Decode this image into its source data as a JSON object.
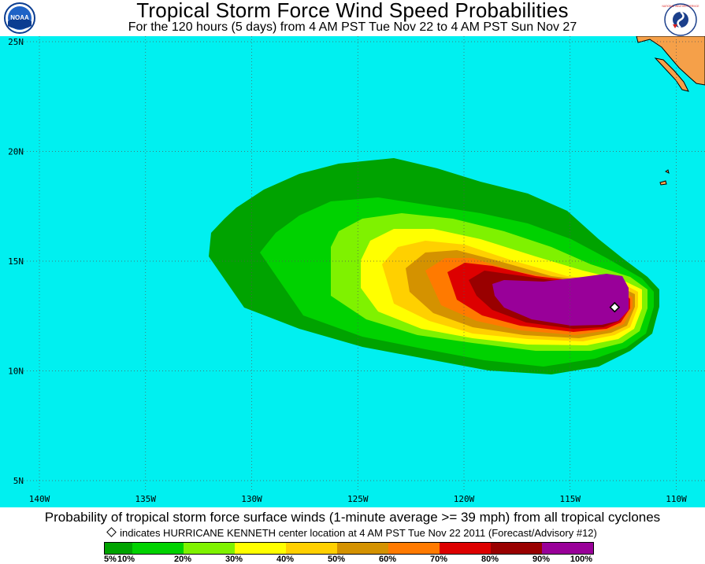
{
  "header": {
    "title": "Tropical Storm Force Wind Speed Probabilities",
    "subtitle": "For the 120 hours (5 days) from 4 AM PST Tue Nov 22 to 4 AM PST Sun Nov 27",
    "left_logo_text": "NOAA",
    "right_logo_text": "NATIONAL WEATHER SERVICE"
  },
  "map": {
    "ocean_color": "#00F0F0",
    "land_color": "#F5A049",
    "lat_labels": [
      "25N",
      "20N",
      "15N",
      "10N",
      "5N"
    ],
    "lon_labels": [
      "140W",
      "135W",
      "130W",
      "125W",
      "120W",
      "115W",
      "110W"
    ],
    "storm_center": {
      "lon": -112.9,
      "lat": 12.9
    }
  },
  "footer": {
    "caption": "Probability of tropical storm force surface winds (1-minute average >= 39 mph) from all tropical cyclones",
    "note": "indicates HURRICANE KENNETH center location at 4 AM PST Tue Nov 22 2011 (Forecast/Advisory #12)"
  },
  "legend": {
    "bins": [
      {
        "from": 5,
        "to": 10,
        "color": "#00A300"
      },
      {
        "from": 10,
        "to": 20,
        "color": "#00D200"
      },
      {
        "from": 20,
        "to": 30,
        "color": "#7FF200"
      },
      {
        "from": 30,
        "to": 40,
        "color": "#FFFF00"
      },
      {
        "from": 40,
        "to": 50,
        "color": "#FFD000"
      },
      {
        "from": 50,
        "to": 60,
        "color": "#D49200"
      },
      {
        "from": 60,
        "to": 70,
        "color": "#FF7A00"
      },
      {
        "from": 70,
        "to": 80,
        "color": "#DD0000"
      },
      {
        "from": 80,
        "to": 90,
        "color": "#990000"
      },
      {
        "from": 90,
        "to": 100,
        "color": "#990099"
      }
    ],
    "tick_labels": [
      "5%",
      "10%",
      "20%",
      "30%",
      "40%",
      "50%",
      "60%",
      "70%",
      "80%",
      "90%",
      "100%"
    ]
  }
}
